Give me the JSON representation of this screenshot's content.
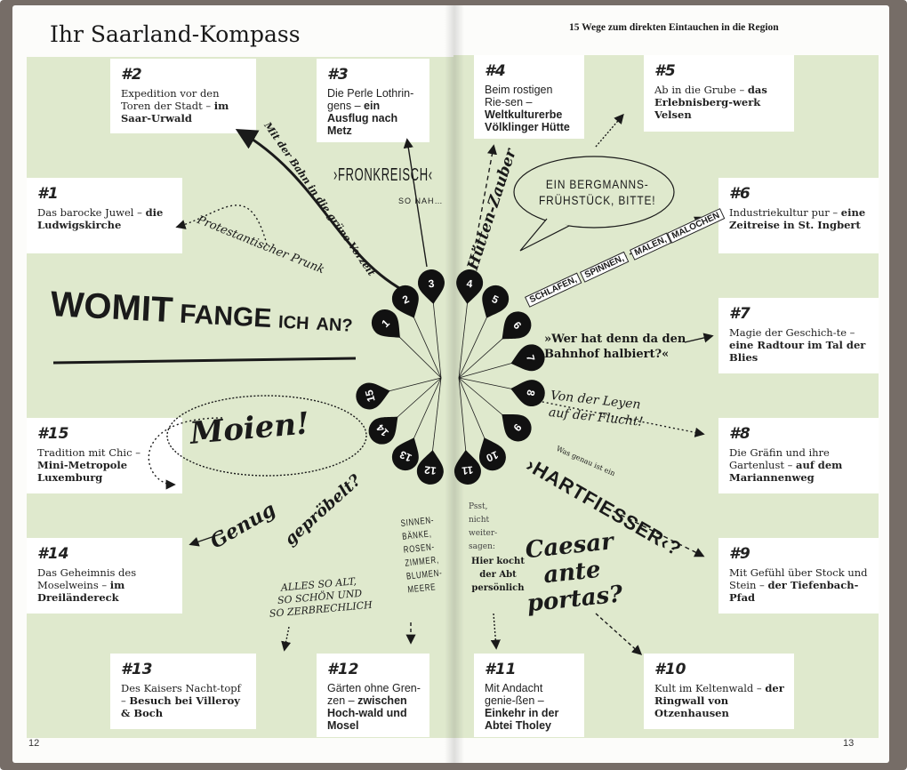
{
  "left_page": {
    "title": "Ihr Saarland-Kompass",
    "page_number": "12"
  },
  "right_page": {
    "subtitle": "15 Wege zum direkten Eintauchen in die Region",
    "page_number": "13"
  },
  "colors": {
    "green": "#dfe9cd",
    "cover": "#766d67",
    "ink": "#1a1a1a"
  },
  "entries": [
    {
      "num": "#1",
      "text": "Das barocke Juwel –",
      "bold": "die Ludwigskirche"
    },
    {
      "num": "#2",
      "text": "Expedition vor den Toren der Stadt –",
      "bold": "im Saar-Urwald"
    },
    {
      "num": "#3",
      "text": "Die Perle Lothrin-gens –",
      "bold": "ein Ausflug nach Metz"
    },
    {
      "num": "#4",
      "text": "Beim rostigen Rie-sen –",
      "bold": "Weltkulturerbe Völklinger Hütte"
    },
    {
      "num": "#5",
      "text": "Ab in die Grube –",
      "bold": "das Erlebnisberg-werk Velsen"
    },
    {
      "num": "#6",
      "text": "Industriekultur pur –",
      "bold": "eine Zeitreise in St. Ingbert"
    },
    {
      "num": "#7",
      "text": "Magie der Geschich-te –",
      "bold": "eine Radtour im Tal der Blies"
    },
    {
      "num": "#8",
      "text": "Die Gräfin und ihre Gartenlust –",
      "bold": "auf dem Mariannenweg"
    },
    {
      "num": "#9",
      "text": "Mit Gefühl über Stock und Stein –",
      "bold": "der Tiefenbach-Pfad"
    },
    {
      "num": "#10",
      "text": "Kult im Keltenwald –",
      "bold": "der Ringwall von Otzenhausen"
    },
    {
      "num": "#11",
      "text": "Mit Andacht genie-ßen –",
      "bold": "Einkehr in der Abtei Tholey"
    },
    {
      "num": "#12",
      "text": "Gärten ohne Gren-zen –",
      "bold": "zwischen Hoch-wald und Mosel"
    },
    {
      "num": "#13",
      "text": "Des Kaisers Nacht-topf –",
      "bold": "Besuch bei Villeroy & Boch"
    },
    {
      "num": "#14",
      "text": "Das Geheimnis des Moselweins –",
      "bold": "im Dreiländereck"
    },
    {
      "num": "#15",
      "text": "Tradition mit Chic –",
      "bold": "Mini-Metropole Luxemburg"
    }
  ],
  "compass": {
    "petals": [
      "1",
      "2",
      "3",
      "4",
      "5",
      "6",
      "7",
      "8",
      "9",
      "10",
      "11",
      "12",
      "13",
      "14",
      "15"
    ],
    "headline": "WOMIT FANGE ICH AN?"
  },
  "annotations": {
    "bahn": "Mit der Bahn in die grüne Vorzeit",
    "prunk": "Protestantischer Prunk",
    "fronkreisch": "›FRONKREISCH‹",
    "so_nah": "SO NAH…",
    "huetten": "Hütten-Zauber",
    "bergmann": "EIN BERGMANNS-\nFRÜHSTÜCK, BITTE!",
    "tags": [
      "SCHLAFEN,",
      "SPINNEN,",
      "MALEN,",
      "MALOCHEN"
    ],
    "bahnhof": "»Wer hat denn da den\nBahnhof halbiert?«",
    "leyen": "Von der Leyen\nauf der Flucht!",
    "was_genau": "Was genau ist ein",
    "hartfiesser": "›HARTFIESSER‹?",
    "caesar": "Caesar\nante\nportas?",
    "psst": "Psst,\nnicht\nweiter-\nsagen:",
    "abt": "Hier kocht\nder Abt\npersönlich",
    "sinnen": "SINNEN-\nBÄNKE,\nROSEN-\nZIMMER,\nBLUMEN-\nMEERE",
    "alles": "ALLES SO ALT,\nSO SCHÖN UND\nSO ZERBRECHLICH",
    "genug": "Genug",
    "gepröbelt": "gepröbelt?",
    "moien": "Moien!"
  }
}
